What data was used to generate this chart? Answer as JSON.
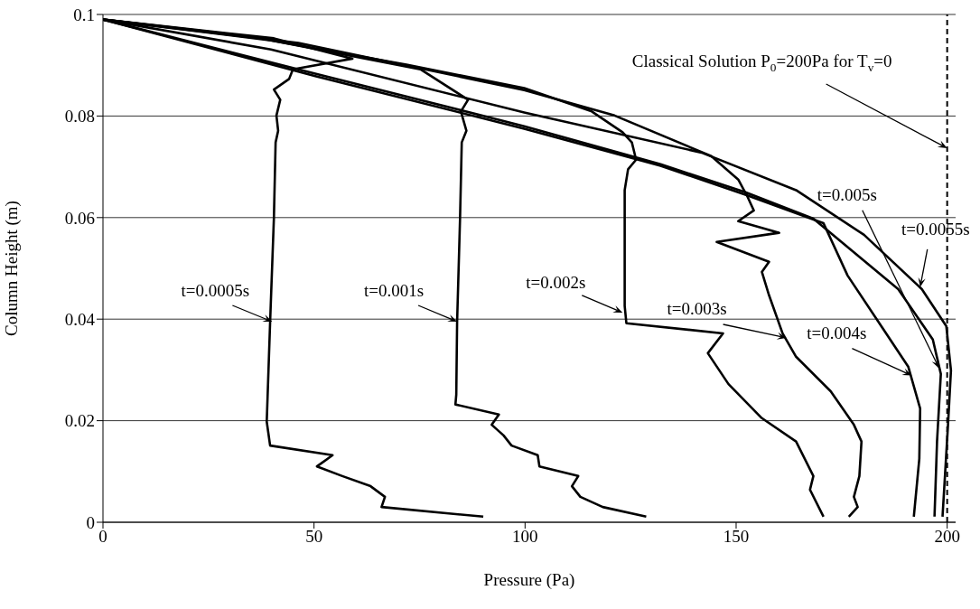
{
  "chart_data": {
    "type": "line",
    "xlabel": "Pressure (Pa)",
    "ylabel": "Column Height (m)",
    "xlim": [
      0,
      202
    ],
    "xticks": [
      0,
      50,
      100,
      150,
      200
    ],
    "ylim": [
      0,
      0.1
    ],
    "yticks": [
      0,
      0.02,
      0.04,
      0.06,
      0.08,
      0.1
    ],
    "grid": "y",
    "marker": "none",
    "line_style": "solid",
    "series": [
      {
        "color": "#000000",
        "x": [
          0,
          40.5,
          45.4,
          59.1,
          45.0,
          44.1,
          40.5,
          42.0,
          41.1,
          41.5,
          40.9,
          40.5,
          39.6,
          38.8,
          39.6,
          54.4,
          50.7,
          56.7,
          63.4,
          66.8,
          66.0,
          90.1
        ],
        "values": [
          0.099,
          0.0953,
          0.0942,
          0.0913,
          0.0892,
          0.0873,
          0.0852,
          0.0832,
          0.0801,
          0.0771,
          0.0748,
          0.06,
          0.0394,
          0.0198,
          0.0151,
          0.0132,
          0.011,
          0.0091,
          0.0071,
          0.005,
          0.003,
          0.0011
        ]
      },
      {
        "color": "#000000",
        "x": [
          0,
          35.5,
          75.2,
          86.5,
          84.8,
          86.1,
          85.0,
          84.6,
          83.9,
          83.7,
          83.5,
          93.8,
          92.1,
          94.9,
          96.8,
          103.0,
          103.4,
          112.6,
          111.1,
          113.1,
          118.4,
          128.7
        ],
        "values": [
          0.099,
          0.0956,
          0.0892,
          0.0832,
          0.0809,
          0.0771,
          0.0748,
          0.06,
          0.0394,
          0.0251,
          0.0232,
          0.0212,
          0.0192,
          0.0171,
          0.0151,
          0.0132,
          0.011,
          0.0091,
          0.0071,
          0.005,
          0.003,
          0.0011
        ]
      },
      {
        "color": "#000000",
        "x": [
          0,
          39.8,
          71.9,
          99.8,
          115.8,
          123.1,
          125.3,
          126.3,
          124.4,
          123.6,
          123.6,
          123.6,
          124.0,
          146.9,
          143.3,
          148.2,
          156.1,
          164.2,
          168.3,
          167.5,
          170.7
        ],
        "values": [
          0.099,
          0.0949,
          0.0901,
          0.0855,
          0.0809,
          0.0768,
          0.0748,
          0.0714,
          0.0695,
          0.0654,
          0.0561,
          0.0426,
          0.0392,
          0.0372,
          0.0333,
          0.0272,
          0.0205,
          0.0159,
          0.0091,
          0.0064,
          0.0011
        ]
      },
      {
        "color": "#000000",
        "x": [
          0,
          46.3,
          99.8,
          121.2,
          144.1,
          150.5,
          152.7,
          154.2,
          150.5,
          160.2,
          145.4,
          157.8,
          156.1,
          157.8,
          161.0,
          164.2,
          172.4,
          177.9,
          179.7,
          179.2,
          177.9,
          178.8,
          176.7
        ],
        "values": [
          0.099,
          0.0944,
          0.0851,
          0.0801,
          0.0721,
          0.0675,
          0.0641,
          0.0614,
          0.0593,
          0.057,
          0.0552,
          0.0513,
          0.0493,
          0.0447,
          0.0372,
          0.0326,
          0.0258,
          0.0192,
          0.0159,
          0.0091,
          0.005,
          0.003,
          0.0011
        ]
      },
      {
        "color": "#000000",
        "x": [
          0,
          50.5,
          99.8,
          132.1,
          152.2,
          170.7,
          176.4,
          184.4,
          190.8,
          193.6,
          193.4,
          192.1
        ],
        "values": [
          0.099,
          0.0878,
          0.0775,
          0.0702,
          0.0645,
          0.0589,
          0.0486,
          0.0386,
          0.0306,
          0.0224,
          0.0125,
          0.0011
        ]
      },
      {
        "color": "#000000",
        "x": [
          0,
          50.5,
          99.8,
          132.1,
          152.2,
          168.3,
          188.4,
          196.6,
          198.5,
          197.6,
          197.0
        ],
        "values": [
          0.099,
          0.0883,
          0.078,
          0.0705,
          0.065,
          0.0598,
          0.0459,
          0.036,
          0.0292,
          0.0159,
          0.0011
        ]
      },
      {
        "color": "#000000",
        "x": [
          0,
          39.8,
          99.8,
          141.8,
          164.2,
          180.3,
          194.0,
          199.8,
          200.9,
          200.2,
          198.9
        ],
        "values": [
          0.099,
          0.0931,
          0.0807,
          0.0728,
          0.0654,
          0.0566,
          0.0459,
          0.0386,
          0.0299,
          0.0192,
          0.0011
        ]
      }
    ],
    "ref_lines": [
      {
        "axis": "x",
        "value": 200,
        "line_style": "dashed",
        "color": "#000000",
        "label": "Classical Solution P$_{0}$=200Pa for T$_{v}$=0"
      }
    ],
    "annotations": [
      {
        "text": "t=0.0005s",
        "x": 40.1,
        "y": 0.0395
      },
      {
        "text": "t=0.001s",
        "x": 83.9,
        "y": 0.0395
      },
      {
        "text": "t=0.002s",
        "x": 123.1,
        "y": 0.0413
      },
      {
        "text": "t=0.003s",
        "x": 161.9,
        "y": 0.0363
      },
      {
        "text": "t=0.004s",
        "x": 191.6,
        "y": 0.0289
      },
      {
        "text": "t=0.005s",
        "x": 198.1,
        "y": 0.0303
      },
      {
        "text": "t=0.0055s",
        "x": 193.6,
        "y": 0.0463
      }
    ]
  }
}
